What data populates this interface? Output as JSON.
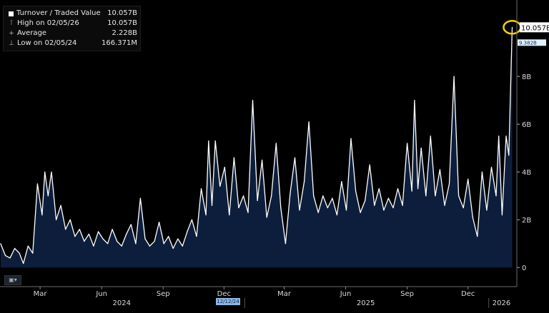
{
  "legend": {
    "series_name": "Turnover / Traded Value",
    "series_value": "10.057B",
    "high_label": "High on 02/05/26",
    "high_value": "10.057B",
    "avg_label": "Average",
    "avg_value": "2.228B",
    "low_label": "Low on 02/05/24",
    "low_value": "166.371M"
  },
  "last_value_label": "10.057B",
  "secondary_tag": "9.382B",
  "crosshair_date": "12/12/24",
  "colors": {
    "line": "#ffffff",
    "area": "#0d1e3d",
    "highlight_circle": "#f2d200",
    "background": "#000000"
  },
  "chart_data": {
    "type": "area",
    "title": "",
    "xlabel": "",
    "ylabel": "",
    "y_unit": "B",
    "ylim": [
      -0.8,
      11.2
    ],
    "y_ticks": [
      0,
      2,
      4,
      6,
      8
    ],
    "y_tick_labels": [
      "0",
      "2B",
      "4B",
      "6B",
      "8B"
    ],
    "x_start": "2024-01-01",
    "x_end": "2026-02-12",
    "x_tick_labels": [
      {
        "label": "Mar",
        "date": "2024-03-01"
      },
      {
        "label": "Jun",
        "date": "2024-06-01"
      },
      {
        "label": "Sep",
        "date": "2024-09-01"
      },
      {
        "label": "Dec",
        "date": "2024-12-01"
      },
      {
        "label": "Mar",
        "date": "2025-03-01"
      },
      {
        "label": "Jun",
        "date": "2025-06-01"
      },
      {
        "label": "Sep",
        "date": "2025-09-01"
      },
      {
        "label": "Dec",
        "date": "2025-12-01"
      }
    ],
    "year_labels": [
      {
        "label": "2024",
        "date": "2024-07-01"
      },
      {
        "label": "2025",
        "date": "2025-07-01"
      },
      {
        "label": "2026",
        "date": "2026-01-20"
      }
    ],
    "grid": false,
    "legend_position": "top-left",
    "series": [
      {
        "name": "Turnover / Traded Value",
        "points": [
          [
            "2024-01-02",
            1.0
          ],
          [
            "2024-01-09",
            0.5
          ],
          [
            "2024-01-16",
            0.4
          ],
          [
            "2024-01-23",
            0.8
          ],
          [
            "2024-01-30",
            0.6
          ],
          [
            "2024-02-05",
            0.17
          ],
          [
            "2024-02-12",
            0.9
          ],
          [
            "2024-02-19",
            0.6
          ],
          [
            "2024-02-26",
            3.5
          ],
          [
            "2024-03-04",
            2.2
          ],
          [
            "2024-03-08",
            4.0
          ],
          [
            "2024-03-13",
            3.0
          ],
          [
            "2024-03-18",
            4.0
          ],
          [
            "2024-03-25",
            2.0
          ],
          [
            "2024-04-01",
            2.6
          ],
          [
            "2024-04-08",
            1.6
          ],
          [
            "2024-04-15",
            2.0
          ],
          [
            "2024-04-22",
            1.3
          ],
          [
            "2024-04-29",
            1.6
          ],
          [
            "2024-05-06",
            1.1
          ],
          [
            "2024-05-13",
            1.4
          ],
          [
            "2024-05-20",
            0.9
          ],
          [
            "2024-05-27",
            1.5
          ],
          [
            "2024-06-03",
            1.2
          ],
          [
            "2024-06-10",
            1.0
          ],
          [
            "2024-06-17",
            1.6
          ],
          [
            "2024-06-24",
            1.1
          ],
          [
            "2024-07-01",
            0.9
          ],
          [
            "2024-07-08",
            1.4
          ],
          [
            "2024-07-15",
            1.8
          ],
          [
            "2024-07-22",
            1.0
          ],
          [
            "2024-07-29",
            2.9
          ],
          [
            "2024-08-05",
            1.2
          ],
          [
            "2024-08-12",
            0.9
          ],
          [
            "2024-08-19",
            1.1
          ],
          [
            "2024-08-26",
            1.9
          ],
          [
            "2024-09-02",
            1.0
          ],
          [
            "2024-09-09",
            1.3
          ],
          [
            "2024-09-16",
            0.8
          ],
          [
            "2024-09-23",
            1.2
          ],
          [
            "2024-09-30",
            0.9
          ],
          [
            "2024-10-07",
            1.5
          ],
          [
            "2024-10-14",
            2.0
          ],
          [
            "2024-10-21",
            1.3
          ],
          [
            "2024-10-28",
            3.3
          ],
          [
            "2024-11-04",
            2.2
          ],
          [
            "2024-11-08",
            5.3
          ],
          [
            "2024-11-13",
            2.6
          ],
          [
            "2024-11-18",
            5.3
          ],
          [
            "2024-11-25",
            3.4
          ],
          [
            "2024-12-02",
            4.2
          ],
          [
            "2024-12-09",
            2.2
          ],
          [
            "2024-12-16",
            4.6
          ],
          [
            "2024-12-23",
            2.5
          ],
          [
            "2024-12-30",
            3.0
          ],
          [
            "2025-01-06",
            2.3
          ],
          [
            "2025-01-13",
            7.0
          ],
          [
            "2025-01-20",
            2.8
          ],
          [
            "2025-01-27",
            4.5
          ],
          [
            "2025-02-03",
            2.1
          ],
          [
            "2025-02-10",
            3.0
          ],
          [
            "2025-02-17",
            5.2
          ],
          [
            "2025-02-24",
            2.5
          ],
          [
            "2025-03-03",
            1.0
          ],
          [
            "2025-03-10",
            3.1
          ],
          [
            "2025-03-17",
            4.6
          ],
          [
            "2025-03-24",
            2.4
          ],
          [
            "2025-03-31",
            3.6
          ],
          [
            "2025-04-07",
            6.1
          ],
          [
            "2025-04-14",
            3.0
          ],
          [
            "2025-04-21",
            2.3
          ],
          [
            "2025-04-28",
            3.0
          ],
          [
            "2025-05-05",
            2.5
          ],
          [
            "2025-05-12",
            2.9
          ],
          [
            "2025-05-19",
            2.2
          ],
          [
            "2025-05-26",
            3.6
          ],
          [
            "2025-06-02",
            2.4
          ],
          [
            "2025-06-09",
            5.4
          ],
          [
            "2025-06-16",
            3.2
          ],
          [
            "2025-06-23",
            2.3
          ],
          [
            "2025-06-30",
            2.8
          ],
          [
            "2025-07-07",
            4.3
          ],
          [
            "2025-07-14",
            2.6
          ],
          [
            "2025-07-21",
            3.3
          ],
          [
            "2025-07-28",
            2.4
          ],
          [
            "2025-08-04",
            2.9
          ],
          [
            "2025-08-11",
            2.5
          ],
          [
            "2025-08-18",
            3.3
          ],
          [
            "2025-08-25",
            2.6
          ],
          [
            "2025-09-01",
            5.2
          ],
          [
            "2025-09-08",
            3.2
          ],
          [
            "2025-09-12",
            7.0
          ],
          [
            "2025-09-17",
            3.3
          ],
          [
            "2025-09-22",
            5.0
          ],
          [
            "2025-09-29",
            3.0
          ],
          [
            "2025-10-06",
            5.5
          ],
          [
            "2025-10-13",
            3.0
          ],
          [
            "2025-10-20",
            4.1
          ],
          [
            "2025-10-27",
            2.6
          ],
          [
            "2025-11-03",
            3.5
          ],
          [
            "2025-11-10",
            8.0
          ],
          [
            "2025-11-17",
            3.0
          ],
          [
            "2025-11-24",
            2.5
          ],
          [
            "2025-12-01",
            3.7
          ],
          [
            "2025-12-08",
            2.1
          ],
          [
            "2025-12-15",
            1.3
          ],
          [
            "2025-12-22",
            4.0
          ],
          [
            "2025-12-29",
            2.4
          ],
          [
            "2026-01-05",
            4.2
          ],
          [
            "2026-01-12",
            3.0
          ],
          [
            "2026-01-16",
            5.5
          ],
          [
            "2026-01-21",
            2.2
          ],
          [
            "2026-01-27",
            5.5
          ],
          [
            "2026-01-31",
            4.7
          ],
          [
            "2026-02-05",
            10.057
          ]
        ]
      }
    ]
  }
}
